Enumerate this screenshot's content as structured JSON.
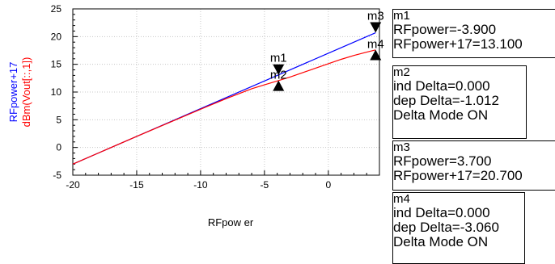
{
  "chart_data": {
    "type": "line",
    "xlabel": "RFpow er",
    "ylabel_lines": [
      "RFpower+17",
      "dBm(Vout[::,1])"
    ],
    "xlim": [
      -20,
      4
    ],
    "ylim": [
      -5,
      25
    ],
    "xticks": [
      -20,
      -15,
      -10,
      -5,
      0
    ],
    "yticks": [
      -5,
      0,
      5,
      10,
      15,
      20,
      25
    ],
    "grid": true,
    "series": [
      {
        "name": "RFpower+17",
        "color": "#0000ff",
        "x": [
          -20,
          -15,
          -10,
          -5,
          0,
          3.7
        ],
        "y": [
          -3,
          2,
          7,
          12,
          17,
          20.7
        ]
      },
      {
        "name": "dBm(Vout[::,1])",
        "color": "#ff0000",
        "x": [
          -20,
          -15,
          -10,
          -8,
          -6,
          -5,
          -4,
          -3,
          -2,
          -1,
          0,
          1,
          2,
          3,
          3.7
        ],
        "y": [
          -3,
          2,
          6.9,
          8.8,
          10.6,
          11.3,
          12.0,
          12.7,
          13.5,
          14.3,
          15.1,
          15.9,
          16.6,
          17.2,
          17.6
        ]
      }
    ],
    "markers": [
      {
        "label": "m1",
        "x": -3.9,
        "y": 13.1,
        "dir": "down"
      },
      {
        "label": "m2",
        "x": -3.9,
        "y": 12.088,
        "dir": "up"
      },
      {
        "label": "m3",
        "x": 3.7,
        "y": 20.7,
        "dir": "down"
      },
      {
        "label": "m4",
        "x": 3.7,
        "y": 17.64,
        "dir": "up"
      }
    ]
  },
  "marker_boxes": [
    {
      "name": "m1",
      "lines": [
        "RFpower=-3.900",
        "RFpower+17=13.100"
      ]
    },
    {
      "name": "m2",
      "lines": [
        "ind Delta=0.000",
        "dep Delta=-1.012",
        "Delta Mode ON"
      ]
    },
    {
      "name": "m3",
      "lines": [
        "RFpower=3.700",
        "RFpower+17=20.700"
      ]
    },
    {
      "name": "m4",
      "lines": [
        "ind Delta=0.000",
        "dep Delta=-3.060",
        "Delta Mode ON"
      ]
    }
  ]
}
